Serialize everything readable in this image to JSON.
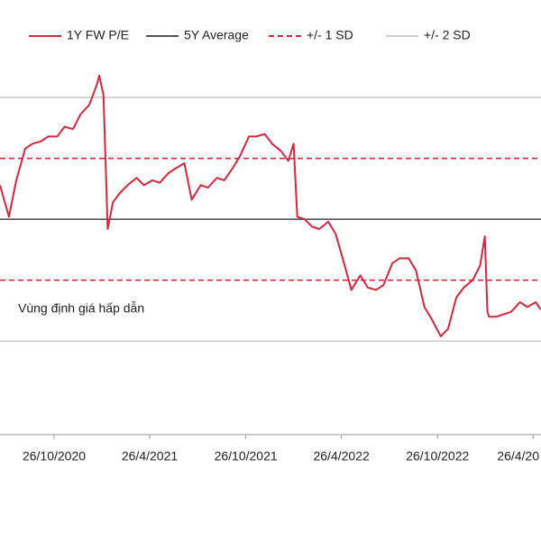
{
  "chart_data": {
    "type": "line",
    "annotation": "Vùng định giá hấp dẫn",
    "xlim": [
      "2020-07-15",
      "2023-05-11"
    ],
    "xticks": [
      {
        "value": "2020-10-26",
        "label": "26/10/2020"
      },
      {
        "value": "2021-04-26",
        "label": "26/4/2021"
      },
      {
        "value": "2021-10-26",
        "label": "26/10/2021"
      },
      {
        "value": "2022-04-26",
        "label": "26/4/2022"
      },
      {
        "value": "2022-10-26",
        "label": "26/10/2022"
      },
      {
        "value": "2023-04-26",
        "label": "26/4/20"
      }
    ],
    "ylim": [
      6.2,
      24
    ],
    "x": [
      "2020-07-15",
      "2020-08-01",
      "2020-08-15",
      "2020-09-01",
      "2020-09-15",
      "2020-10-01",
      "2020-10-15",
      "2020-11-01",
      "2020-11-15",
      "2020-12-01",
      "2020-12-15",
      "2021-01-01",
      "2021-01-15",
      "2021-01-20",
      "2021-01-28",
      "2021-02-05",
      "2021-02-15",
      "2021-03-01",
      "2021-03-15",
      "2021-04-01",
      "2021-04-15",
      "2021-05-01",
      "2021-05-15",
      "2021-06-01",
      "2021-06-15",
      "2021-07-01",
      "2021-07-15",
      "2021-08-01",
      "2021-08-15",
      "2021-09-01",
      "2021-09-15",
      "2021-10-01",
      "2021-10-15",
      "2021-11-01",
      "2021-11-15",
      "2021-12-01",
      "2021-12-15",
      "2022-01-01",
      "2022-01-15",
      "2022-01-25",
      "2022-02-01",
      "2022-02-15",
      "2022-03-01",
      "2022-03-15",
      "2022-04-01",
      "2022-04-15",
      "2022-05-01",
      "2022-05-15",
      "2022-06-01",
      "2022-06-15",
      "2022-07-01",
      "2022-07-15",
      "2022-08-01",
      "2022-08-15",
      "2022-09-01",
      "2022-09-15",
      "2022-10-01",
      "2022-10-15",
      "2022-11-01",
      "2022-11-15",
      "2022-12-01",
      "2022-12-15",
      "2023-01-01",
      "2023-01-15",
      "2023-01-24",
      "2023-01-29",
      "2023-02-01",
      "2023-02-15",
      "2023-03-01",
      "2023-03-15",
      "2023-04-01",
      "2023-04-15",
      "2023-05-01",
      "2023-05-10"
    ],
    "series": [
      {
        "name": "1Y FW P/E",
        "color": "#d7263d",
        "values": [
          16.4,
          15.1,
          16.6,
          17.9,
          18.1,
          18.2,
          18.4,
          18.4,
          18.8,
          18.7,
          19.3,
          19.7,
          20.5,
          20.9,
          20.1,
          14.6,
          15.7,
          16.1,
          16.4,
          16.7,
          16.4,
          16.6,
          16.5,
          16.9,
          17.1,
          17.3,
          15.8,
          16.4,
          16.3,
          16.7,
          16.6,
          17.1,
          17.6,
          18.4,
          18.4,
          18.5,
          18.1,
          17.8,
          17.4,
          18.1,
          15.1,
          15.0,
          14.7,
          14.6,
          14.9,
          14.4,
          13.2,
          12.1,
          12.7,
          12.2,
          12.1,
          12.3,
          13.2,
          13.4,
          13.4,
          12.9,
          11.4,
          10.9,
          10.2,
          10.5,
          11.8,
          12.2,
          12.5,
          13.1,
          14.3,
          11.2,
          11.0,
          11.0,
          11.1,
          11.2,
          11.6,
          11.4,
          11.6,
          11.3
        ]
      }
    ],
    "reference_lines": [
      {
        "name": "5Y Average",
        "color": "#555555",
        "style": "solid",
        "values": [
          15
        ]
      },
      {
        "name": "+/- 1 SD",
        "color": "#d7263d",
        "style": "dashed",
        "values": [
          17.5,
          12.5
        ]
      },
      {
        "name": "+/- 2 SD",
        "color": "#cccccc",
        "style": "solid",
        "values": [
          20,
          10
        ]
      }
    ]
  }
}
